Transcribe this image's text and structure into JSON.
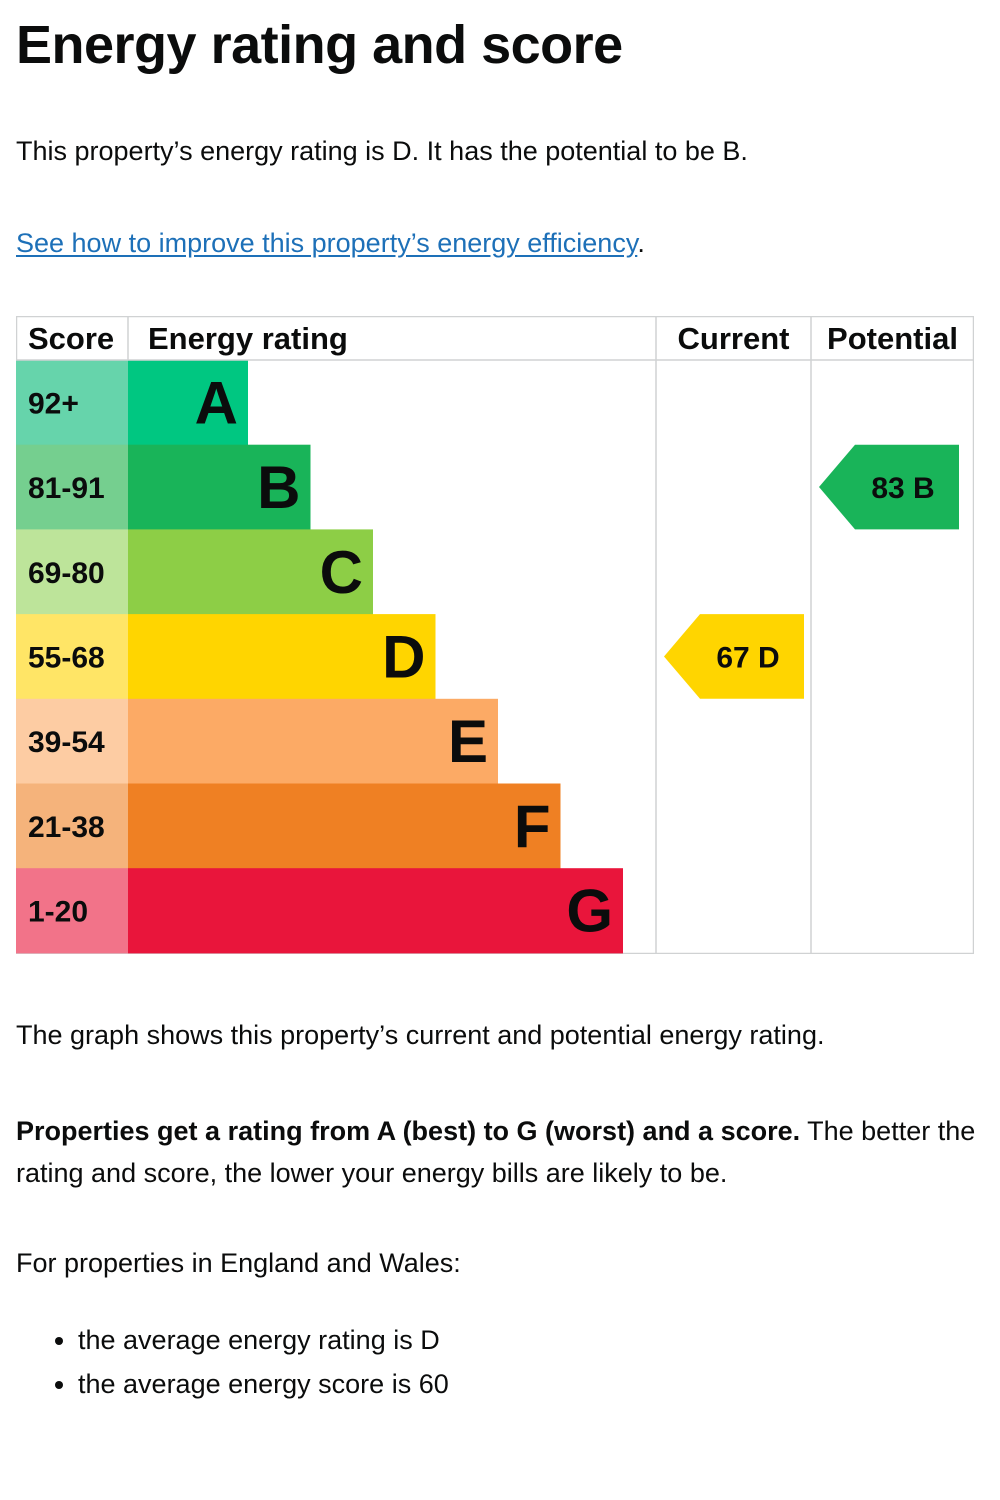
{
  "heading": "Energy rating and score",
  "intro": "This property’s energy rating is D. It has the potential to be B.",
  "improve": {
    "link_text": "See how to improve this property’s energy efficiency",
    "suffix": "."
  },
  "chart_data": {
    "type": "bar",
    "headers": {
      "score": "Score",
      "rating": "Energy rating",
      "current": "Current",
      "potential": "Potential"
    },
    "bands": [
      {
        "letter": "A",
        "range": "92+",
        "color": "#00c781",
        "light": "#66d4ab"
      },
      {
        "letter": "B",
        "range": "81-91",
        "color": "#19b459",
        "light": "#75cf8f"
      },
      {
        "letter": "C",
        "range": "69-80",
        "color": "#8dce46",
        "light": "#bde49a"
      },
      {
        "letter": "D",
        "range": "55-68",
        "color": "#ffd500",
        "light": "#ffe566"
      },
      {
        "letter": "E",
        "range": "39-54",
        "color": "#fcaa65",
        "light": "#fdcca3"
      },
      {
        "letter": "F",
        "range": "21-38",
        "color": "#ef8023",
        "light": "#f5b37b"
      },
      {
        "letter": "G",
        "range": "1-20",
        "color": "#e9153b",
        "light": "#f27389"
      }
    ],
    "current": {
      "score": 67,
      "letter": "D",
      "label": "67  D",
      "color": "#ffd500"
    },
    "potential": {
      "score": 83,
      "letter": "B",
      "label": "83  B",
      "color": "#19b459"
    }
  },
  "graph_note": "The graph shows this property’s current and potential energy rating.",
  "rating_explain": {
    "bold": "Properties get a rating from A (best) to G (worst) and a score.",
    "rest": " The better the rating and score, the lower your energy bills are likely to be."
  },
  "regional_intro": "For properties in England and Wales:",
  "averages": [
    "the average energy rating is D",
    "the average energy score is 60"
  ]
}
